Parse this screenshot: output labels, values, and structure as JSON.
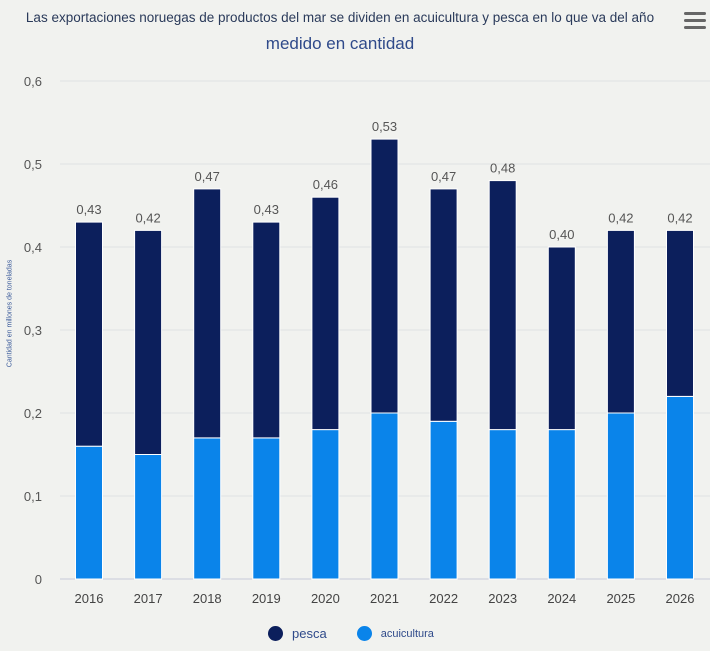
{
  "title": "Las exportaciones noruegas de productos del mar se dividen en acuicultura y pesca en lo que va del año",
  "subtitle": "medido en cantidad",
  "menu_icon": "hamburger-menu-icon",
  "chart_data": {
    "type": "bar",
    "stacked": true,
    "categories": [
      "2016",
      "2017",
      "2018",
      "2019",
      "2020",
      "2021",
      "2022",
      "2023",
      "2024",
      "2025",
      "2026"
    ],
    "series": [
      {
        "name": "pesca",
        "color": "#0c1f5c",
        "values": [
          0.27,
          0.27,
          0.3,
          0.26,
          0.28,
          0.33,
          0.28,
          0.3,
          0.22,
          0.22,
          0.2
        ]
      },
      {
        "name": "acuicultura",
        "color": "#0a84ea",
        "values": [
          0.16,
          0.15,
          0.17,
          0.17,
          0.18,
          0.2,
          0.19,
          0.18,
          0.18,
          0.2,
          0.22
        ]
      }
    ],
    "totals_labels": [
      "0,43",
      "0,42",
      "0,47",
      "0,43",
      "0,46",
      "0,53",
      "0,47",
      "0,48",
      "0,40",
      "0,42",
      "0,42"
    ],
    "ylabel": "Cantidad en millones de toneladas",
    "ylim": [
      0,
      0.6
    ],
    "yticks": [
      "0",
      "0,1",
      "0,2",
      "0,3",
      "0,4",
      "0,5",
      "0,6"
    ],
    "grid": true,
    "legend": "bottom-center"
  }
}
